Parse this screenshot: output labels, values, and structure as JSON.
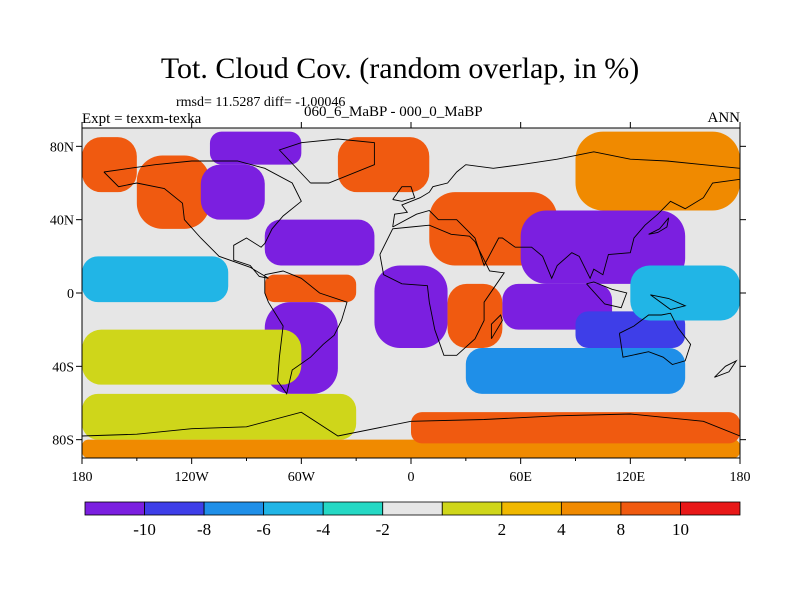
{
  "title": "Tot. Cloud Cov. (random overlap, in %)",
  "stats": "rmsd= 11.5287 diff= -1.00046",
  "experiment": "Expt = texxm-texka",
  "period": "060_6_MaBP - 000_0_MaBP",
  "season": "ANN",
  "colors": {
    "levels": [
      "#7b1fe0",
      "#3e3ee8",
      "#1f8fe8",
      "#21b5e6",
      "#25d8c4",
      "#e6e6e6",
      "#cfd61a",
      "#f0b800",
      "#f08a00",
      "#f05a10",
      "#e81818"
    ],
    "coastline": "#000000",
    "frame": "#000000"
  },
  "chart_data": {
    "type": "heatmap",
    "xlim": [
      -180,
      180
    ],
    "ylim": [
      -90,
      90
    ],
    "x_ticks": [
      -180,
      -120,
      -60,
      0,
      60,
      120,
      180
    ],
    "y_ticks": [
      80,
      40,
      0,
      -40,
      -80
    ],
    "x_tick_labels": [
      "180",
      "120W",
      "60W",
      "0",
      "60E",
      "120E",
      "180"
    ],
    "y_tick_labels": [
      "80N",
      "40N",
      "0",
      "40S",
      "80S"
    ],
    "colorbar": {
      "boundaries": [
        -10,
        -8,
        -6,
        -4,
        -2,
        2,
        4,
        8,
        10
      ],
      "labels": [
        "-10",
        "-8",
        "-6",
        "-4",
        "-2",
        "2",
        "4",
        "8",
        "10"
      ]
    },
    "regions": [
      {
        "lon": [
          -180,
          180
        ],
        "lat": [
          -90,
          90
        ],
        "value": 0
      },
      {
        "lon": [
          -180,
          -150
        ],
        "lat": [
          55,
          85
        ],
        "value": 11
      },
      {
        "lon": [
          -150,
          -110
        ],
        "lat": [
          35,
          75
        ],
        "value": 11
      },
      {
        "lon": [
          -115,
          -80
        ],
        "lat": [
          40,
          70
        ],
        "value": -11
      },
      {
        "lon": [
          -110,
          -60
        ],
        "lat": [
          70,
          88
        ],
        "value": -11
      },
      {
        "lon": [
          -80,
          -20
        ],
        "lat": [
          15,
          40
        ],
        "value": -11
      },
      {
        "lon": [
          -80,
          -30
        ],
        "lat": [
          -5,
          10
        ],
        "value": 11
      },
      {
        "lon": [
          -80,
          -40
        ],
        "lat": [
          -55,
          -5
        ],
        "value": -11
      },
      {
        "lon": [
          -40,
          10
        ],
        "lat": [
          55,
          85
        ],
        "value": 11
      },
      {
        "lon": [
          -20,
          20
        ],
        "lat": [
          -30,
          15
        ],
        "value": -11
      },
      {
        "lon": [
          20,
          50
        ],
        "lat": [
          -30,
          5
        ],
        "value": 11
      },
      {
        "lon": [
          10,
          80
        ],
        "lat": [
          15,
          55
        ],
        "value": 11
      },
      {
        "lon": [
          60,
          150
        ],
        "lat": [
          5,
          45
        ],
        "value": -11
      },
      {
        "lon": [
          90,
          180
        ],
        "lat": [
          45,
          88
        ],
        "value": 9
      },
      {
        "lon": [
          50,
          110
        ],
        "lat": [
          -20,
          5
        ],
        "value": -11
      },
      {
        "lon": [
          90,
          150
        ],
        "lat": [
          -30,
          -10
        ],
        "value": -9
      },
      {
        "lon": [
          30,
          150
        ],
        "lat": [
          -55,
          -30
        ],
        "value": -7
      },
      {
        "lon": [
          -180,
          -60
        ],
        "lat": [
          -50,
          -20
        ],
        "value": 3
      },
      {
        "lon": [
          -180,
          -30
        ],
        "lat": [
          -80,
          -55
        ],
        "value": 3
      },
      {
        "lon": [
          -180,
          180
        ],
        "lat": [
          -90,
          -80
        ],
        "value": 9
      },
      {
        "lon": [
          0,
          180
        ],
        "lat": [
          -82,
          -65
        ],
        "value": 11
      },
      {
        "lon": [
          120,
          180
        ],
        "lat": [
          -15,
          15
        ],
        "value": -5
      },
      {
        "lon": [
          -180,
          -100
        ],
        "lat": [
          -5,
          20
        ],
        "value": -5
      }
    ]
  }
}
